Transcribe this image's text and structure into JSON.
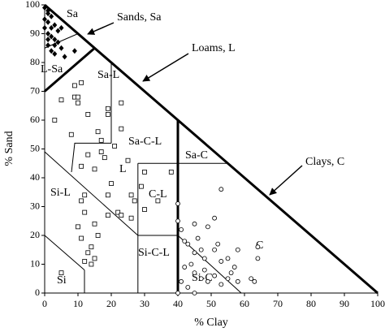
{
  "chart_data": {
    "type": "scatter",
    "xlabel": "% Clay",
    "ylabel": "% Sand",
    "xlim": [
      0,
      100
    ],
    "ylim": [
      0,
      100
    ],
    "xticks": [
      0,
      10,
      20,
      30,
      40,
      50,
      60,
      70,
      80,
      90,
      100
    ],
    "yticks": [
      0,
      10,
      20,
      30,
      40,
      50,
      60,
      70,
      80,
      90,
      100
    ],
    "annotations": [
      "Sa",
      "Sands, Sa",
      "Loams, L",
      "L-Sa",
      "Sa-L",
      "Sa-C-L",
      "L",
      "Sa-C",
      "Clays, C",
      "Si-L",
      "C-L",
      "C",
      "Si-C-L",
      "Si-C",
      "Si"
    ],
    "series": [
      {
        "marker": "diamond",
        "color": "#000000",
        "x": [
          0,
          1,
          1,
          2,
          0,
          1,
          3,
          2,
          4,
          1,
          2,
          3,
          4,
          1,
          5,
          2,
          3,
          6,
          9,
          0,
          5,
          3,
          1
        ],
        "values": [
          99,
          98,
          97,
          96,
          95,
          94,
          93,
          92,
          91,
          90,
          89,
          88,
          87,
          86,
          85,
          84,
          83,
          82,
          84,
          92,
          92,
          86,
          88
        ]
      },
      {
        "marker": "square",
        "color": "#000000",
        "x": [
          9,
          11,
          5,
          9,
          10,
          10,
          3,
          13,
          19,
          19,
          23,
          8,
          16,
          17,
          23,
          13,
          17,
          18,
          21,
          11,
          15,
          25,
          20,
          12,
          19,
          26,
          30,
          29,
          34,
          27,
          22,
          26,
          19,
          11,
          12,
          10,
          15,
          11,
          16,
          14,
          13,
          15,
          14,
          12,
          5,
          30,
          38,
          23
        ],
        "values": [
          72,
          73,
          67,
          68,
          68,
          66,
          60,
          62,
          64,
          62,
          66,
          55,
          56,
          53,
          57,
          48,
          49,
          47,
          51,
          44,
          43,
          46,
          38,
          34,
          34,
          34,
          42,
          37,
          32,
          32,
          28,
          26,
          27,
          32,
          28,
          23,
          24,
          19,
          20,
          16,
          14,
          12,
          10,
          11,
          7,
          29,
          42,
          27
        ]
      },
      {
        "marker": "circle",
        "color": "#000000",
        "x": [
          40,
          40,
          41,
          45,
          49,
          53,
          51,
          42,
          43,
          45,
          47,
          48,
          52,
          51,
          55,
          53,
          57,
          56,
          58,
          44,
          45,
          47,
          49,
          51,
          53,
          41,
          43,
          45,
          48,
          64,
          64,
          62,
          63,
          40,
          42,
          46,
          55,
          58
        ],
        "values": [
          31,
          25,
          22,
          24,
          23,
          36,
          26,
          18,
          17,
          14,
          15,
          12,
          17,
          15,
          12,
          11,
          9,
          7,
          15,
          10,
          7,
          5,
          4,
          6,
          3,
          4,
          2,
          0,
          8,
          16,
          12,
          5,
          4,
          0,
          9,
          19,
          5,
          4
        ]
      }
    ]
  }
}
